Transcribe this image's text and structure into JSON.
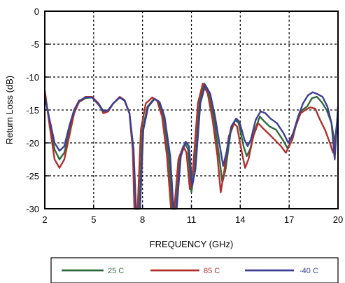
{
  "chart_data": {
    "type": "line",
    "title": "",
    "xlabel": "FREQUENCY (GHz)",
    "ylabel": "Return Loss (dB)",
    "xlim": [
      2,
      20
    ],
    "ylim": [
      -30,
      0
    ],
    "xticks": [
      2,
      5,
      8,
      11,
      14,
      17,
      20
    ],
    "yticks": [
      0,
      -5,
      -10,
      -15,
      -20,
      -25,
      -30
    ],
    "grid": true,
    "legend_position": "bottom",
    "series": [
      {
        "name": "25 C",
        "color": "#2e6b3a",
        "points": [
          [
            2,
            -12.5
          ],
          [
            2.3,
            -17
          ],
          [
            2.6,
            -21
          ],
          [
            2.9,
            -22.5
          ],
          [
            3.2,
            -21.5
          ],
          [
            3.5,
            -18.5
          ],
          [
            3.8,
            -15.5
          ],
          [
            4.1,
            -13.8
          ],
          [
            4.5,
            -13.2
          ],
          [
            4.9,
            -13.1
          ],
          [
            5.3,
            -14
          ],
          [
            5.6,
            -15.2
          ],
          [
            5.9,
            -15
          ],
          [
            6.2,
            -14
          ],
          [
            6.6,
            -13.1
          ],
          [
            6.9,
            -13.6
          ],
          [
            7.2,
            -15.5
          ],
          [
            7.4,
            -21
          ],
          [
            7.55,
            -30
          ],
          [
            7.8,
            -30
          ],
          [
            8.0,
            -18
          ],
          [
            8.3,
            -14.5
          ],
          [
            8.7,
            -13.3
          ],
          [
            9.0,
            -13.7
          ],
          [
            9.3,
            -16
          ],
          [
            9.6,
            -22
          ],
          [
            9.85,
            -30
          ],
          [
            10.05,
            -30
          ],
          [
            10.3,
            -22.5
          ],
          [
            10.6,
            -20
          ],
          [
            10.8,
            -21
          ],
          [
            11.0,
            -27.5
          ],
          [
            11.2,
            -24
          ],
          [
            11.5,
            -14
          ],
          [
            11.8,
            -11
          ],
          [
            12.1,
            -12.5
          ],
          [
            12.4,
            -16.5
          ],
          [
            12.7,
            -22
          ],
          [
            12.9,
            -26
          ],
          [
            13.1,
            -24
          ],
          [
            13.4,
            -18.5
          ],
          [
            13.7,
            -16.5
          ],
          [
            13.9,
            -17
          ],
          [
            14.2,
            -20.5
          ],
          [
            14.4,
            -22
          ],
          [
            14.6,
            -21
          ],
          [
            14.9,
            -18
          ],
          [
            15.2,
            -16
          ],
          [
            15.5,
            -16.8
          ],
          [
            15.8,
            -17.5
          ],
          [
            16.2,
            -18
          ],
          [
            16.6,
            -19.5
          ],
          [
            16.9,
            -20.8
          ],
          [
            17.2,
            -19.5
          ],
          [
            17.5,
            -16.5
          ],
          [
            17.8,
            -15
          ],
          [
            18.1,
            -14.5
          ],
          [
            18.4,
            -13.2
          ],
          [
            18.7,
            -13
          ],
          [
            19.0,
            -13.8
          ],
          [
            19.3,
            -15
          ],
          [
            19.6,
            -17
          ],
          [
            19.8,
            -20
          ],
          [
            20,
            -15.5
          ]
        ]
      },
      {
        "name": "85 C",
        "color": "#b0302e",
        "points": [
          [
            2,
            -12
          ],
          [
            2.3,
            -17.5
          ],
          [
            2.6,
            -22.5
          ],
          [
            2.9,
            -23.8
          ],
          [
            3.2,
            -22.5
          ],
          [
            3.5,
            -19
          ],
          [
            3.8,
            -15.5
          ],
          [
            4.1,
            -13.8
          ],
          [
            4.5,
            -13
          ],
          [
            4.9,
            -13
          ],
          [
            5.3,
            -14
          ],
          [
            5.6,
            -15.5
          ],
          [
            5.9,
            -15.2
          ],
          [
            6.2,
            -14
          ],
          [
            6.6,
            -13
          ],
          [
            6.9,
            -13.5
          ],
          [
            7.2,
            -15.5
          ],
          [
            7.4,
            -21
          ],
          [
            7.5,
            -30
          ],
          [
            7.7,
            -30
          ],
          [
            7.9,
            -18
          ],
          [
            8.2,
            -14
          ],
          [
            8.6,
            -13.1
          ],
          [
            8.9,
            -13.6
          ],
          [
            9.2,
            -16
          ],
          [
            9.5,
            -22
          ],
          [
            9.75,
            -30
          ],
          [
            9.95,
            -30
          ],
          [
            10.2,
            -22.5
          ],
          [
            10.5,
            -20.5
          ],
          [
            10.7,
            -21.5
          ],
          [
            10.9,
            -27
          ],
          [
            11.1,
            -24
          ],
          [
            11.4,
            -14
          ],
          [
            11.7,
            -11
          ],
          [
            12.0,
            -12.5
          ],
          [
            12.3,
            -16.5
          ],
          [
            12.6,
            -22
          ],
          [
            12.8,
            -27.5
          ],
          [
            13.0,
            -24.5
          ],
          [
            13.3,
            -19
          ],
          [
            13.6,
            -17
          ],
          [
            13.8,
            -17.5
          ],
          [
            14.1,
            -21.5
          ],
          [
            14.3,
            -23.8
          ],
          [
            14.5,
            -22.5
          ],
          [
            14.8,
            -19
          ],
          [
            15.1,
            -17
          ],
          [
            15.4,
            -17.8
          ],
          [
            15.7,
            -18.5
          ],
          [
            16.1,
            -19.5
          ],
          [
            16.5,
            -20.5
          ],
          [
            16.8,
            -21.5
          ],
          [
            17.1,
            -20
          ],
          [
            17.4,
            -17.5
          ],
          [
            17.7,
            -15.5
          ],
          [
            18.0,
            -15
          ],
          [
            18.3,
            -14.6
          ],
          [
            18.6,
            -14.8
          ],
          [
            18.9,
            -16.5
          ],
          [
            19.2,
            -18
          ],
          [
            19.5,
            -20
          ],
          [
            19.7,
            -21.5
          ],
          [
            19.9,
            -18.5
          ],
          [
            20,
            -16.5
          ]
        ]
      },
      {
        "name": "-40 C",
        "color": "#3c3f94",
        "points": [
          [
            2,
            -13
          ],
          [
            2.3,
            -16.5
          ],
          [
            2.6,
            -20
          ],
          [
            2.9,
            -21.2
          ],
          [
            3.2,
            -20.5
          ],
          [
            3.5,
            -17.5
          ],
          [
            3.8,
            -15
          ],
          [
            4.1,
            -13.6
          ],
          [
            4.5,
            -13.1
          ],
          [
            4.9,
            -13.1
          ],
          [
            5.3,
            -14.2
          ],
          [
            5.6,
            -15.2
          ],
          [
            5.9,
            -15
          ],
          [
            6.2,
            -14
          ],
          [
            6.6,
            -13.1
          ],
          [
            6.9,
            -13.6
          ],
          [
            7.2,
            -15.5
          ],
          [
            7.45,
            -21
          ],
          [
            7.6,
            -30
          ],
          [
            7.85,
            -30
          ],
          [
            8.05,
            -18
          ],
          [
            8.35,
            -14.5
          ],
          [
            8.75,
            -13.3
          ],
          [
            9.05,
            -13.8
          ],
          [
            9.35,
            -16
          ],
          [
            9.7,
            -22
          ],
          [
            9.9,
            -30
          ],
          [
            10.1,
            -30
          ],
          [
            10.35,
            -22
          ],
          [
            10.65,
            -19.8
          ],
          [
            10.85,
            -20.5
          ],
          [
            11.05,
            -26.5
          ],
          [
            11.25,
            -24
          ],
          [
            11.55,
            -14
          ],
          [
            11.85,
            -11.2
          ],
          [
            12.15,
            -12.5
          ],
          [
            12.45,
            -16
          ],
          [
            12.75,
            -20.5
          ],
          [
            12.95,
            -23.5
          ],
          [
            13.15,
            -21.5
          ],
          [
            13.45,
            -17.5
          ],
          [
            13.75,
            -16.3
          ],
          [
            13.95,
            -16.8
          ],
          [
            14.25,
            -19.5
          ],
          [
            14.45,
            -20.5
          ],
          [
            14.65,
            -19.5
          ],
          [
            14.95,
            -16.5
          ],
          [
            15.25,
            -15.2
          ],
          [
            15.55,
            -15.5
          ],
          [
            15.85,
            -16.3
          ],
          [
            16.25,
            -17
          ],
          [
            16.65,
            -18.5
          ],
          [
            16.95,
            -20
          ],
          [
            17.25,
            -18.5
          ],
          [
            17.55,
            -16
          ],
          [
            17.85,
            -14
          ],
          [
            18.15,
            -12.8
          ],
          [
            18.45,
            -12.3
          ],
          [
            18.75,
            -12.6
          ],
          [
            19.05,
            -13
          ],
          [
            19.35,
            -14.5
          ],
          [
            19.6,
            -17
          ],
          [
            19.8,
            -22.5
          ],
          [
            20,
            -14.5
          ]
        ]
      }
    ]
  }
}
